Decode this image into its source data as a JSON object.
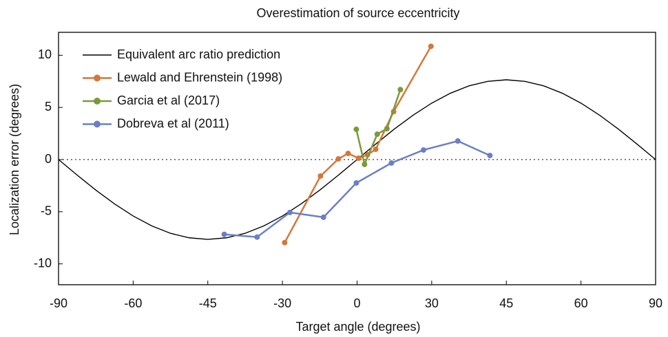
{
  "chart_data": {
    "type": "line",
    "title": "Overestimation of source eccentricity",
    "xlabel": "Target angle (degrees)",
    "ylabel": "Localization error (degrees)",
    "xlim": [
      -4,
      4
    ],
    "xticks": [
      {
        "value": -4,
        "label": "-90"
      },
      {
        "value": -3,
        "label": "-60"
      },
      {
        "value": -2,
        "label": "-45"
      },
      {
        "value": -1,
        "label": "-30"
      },
      0,
      {
        "value": 1,
        "label": "30"
      },
      {
        "value": 2,
        "label": "45"
      },
      {
        "value": 3,
        "label": "60"
      },
      {
        "value": 4,
        "label": "90"
      }
    ],
    "ylim": [
      -12,
      12.2
    ],
    "yticks": [
      -10,
      -5,
      0,
      5,
      10
    ],
    "zero_line": true,
    "legend": "upper left",
    "series": [
      {
        "name": "Equivalent arc ratio prediction",
        "color": "#000000",
        "marker": false,
        "x": [
          -4,
          -3.75,
          -3.5,
          -3.25,
          -3,
          -2.75,
          -2.5,
          -2.25,
          -2,
          -1.75,
          -1.5,
          -1.25,
          -1,
          -0.75,
          -0.5,
          -0.25,
          0,
          0.25,
          0.5,
          0.75,
          1,
          1.25,
          1.5,
          1.75,
          2,
          2.25,
          2.5,
          2.75,
          3,
          3.25,
          3.5,
          3.75,
          4
        ],
        "values": [
          0,
          -1.49,
          -2.93,
          -4.25,
          -5.41,
          -6.36,
          -7.07,
          -7.5,
          -7.65,
          -7.5,
          -7.07,
          -6.36,
          -5.41,
          -4.25,
          -2.93,
          -1.49,
          0,
          1.49,
          2.93,
          4.25,
          5.41,
          6.36,
          7.07,
          7.5,
          7.65,
          7.5,
          7.07,
          6.36,
          5.41,
          4.25,
          2.93,
          1.49,
          0
        ]
      },
      {
        "name": "Lewald and Ehrenstein (1998)",
        "color": "#d4773a",
        "marker": true,
        "x": [
          -0.97,
          -0.49,
          -0.25,
          -0.12,
          0.02,
          0.14,
          0.25,
          0.49,
          0.99
        ],
        "values": [
          -7.96,
          -1.58,
          0.07,
          0.59,
          0.13,
          0.46,
          0.99,
          4.6,
          10.86
        ]
      },
      {
        "name": "Garcia et al (2017)",
        "color": "#7a9a3a",
        "marker": true,
        "x": [
          -0.01,
          0.1,
          0.27,
          0.4,
          0.58
        ],
        "values": [
          2.9,
          -0.46,
          2.43,
          2.96,
          6.71
        ]
      },
      {
        "name": "Dobreva et al (2011)",
        "color": "#6b7fc4",
        "marker": true,
        "x": [
          -1.78,
          -1.34,
          -0.9,
          -0.45,
          -0.01,
          0.46,
          0.89,
          1.35,
          1.78
        ],
        "values": [
          -7.17,
          -7.43,
          -5.07,
          -5.53,
          -2.24,
          -0.33,
          0.92,
          1.78,
          0.39
        ]
      }
    ]
  }
}
